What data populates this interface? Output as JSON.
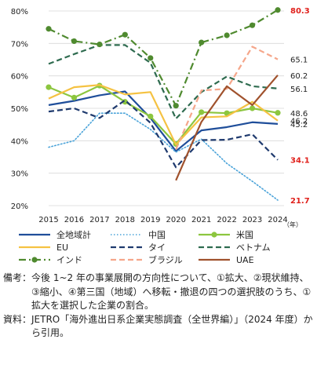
{
  "chart_data": {
    "type": "line",
    "x_unit": "（年）",
    "x": [
      "2015",
      "2016",
      "2017",
      "2018",
      "2019",
      "2020",
      "2021",
      "2022",
      "2023",
      "2024"
    ],
    "ylim": [
      20,
      80
    ],
    "yticks": [
      "20%",
      "30%",
      "40%",
      "50%",
      "60%",
      "70%",
      "80%"
    ],
    "series": [
      {
        "name": "全地域計",
        "color": "#1f4e9a",
        "style": "solid",
        "marker": false,
        "values": [
          51.0,
          52.3,
          54.0,
          55.2,
          47.0,
          36.8,
          43.2,
          44.2,
          45.7,
          45.2
        ],
        "end_label": "45.2",
        "end_label_color": "#222222"
      },
      {
        "name": "中国",
        "color": "#4aa3d9",
        "style": "dotted",
        "marker": false,
        "values": [
          38.0,
          40.0,
          48.5,
          48.5,
          43.5,
          36.5,
          40.5,
          33.0,
          27.5,
          21.7
        ],
        "end_label": "21.7",
        "end_label_color": "#e0201b"
      },
      {
        "name": "米国",
        "color": "#8cc63f",
        "style": "solid",
        "marker": true,
        "values": [
          56.5,
          53.3,
          57.0,
          52.0,
          47.5,
          39.0,
          48.8,
          48.5,
          50.0,
          48.6
        ],
        "end_label": "48.6",
        "end_label_color": "#222222"
      },
      {
        "name": "EU",
        "color": "#f5c242",
        "style": "solid",
        "marker": false,
        "values": [
          53.0,
          56.5,
          57.2,
          54.3,
          55.0,
          38.8,
          47.2,
          47.5,
          52.0,
          46.2
        ],
        "end_label": "46.2",
        "end_label_color": "#222222"
      },
      {
        "name": "タイ",
        "color": "#1f3a6e",
        "style": "dashed",
        "marker": false,
        "values": [
          49.0,
          50.0,
          47.0,
          52.5,
          45.5,
          31.8,
          40.2,
          40.3,
          42.0,
          34.1
        ],
        "end_label": "34.1",
        "end_label_color": "#e0201b"
      },
      {
        "name": "ベトナム",
        "color": "#2e6b4f",
        "style": "dashed",
        "marker": false,
        "values": [
          63.7,
          66.7,
          69.5,
          69.5,
          64.0,
          46.8,
          55.0,
          59.8,
          56.8,
          56.1
        ],
        "end_label": "56.1",
        "end_label_color": "#222222"
      },
      {
        "name": "インド",
        "color": "#4f8a2f",
        "style": "dashdot",
        "marker": true,
        "values": [
          74.5,
          70.7,
          69.7,
          72.7,
          65.5,
          50.8,
          70.3,
          72.5,
          75.6,
          80.3
        ],
        "end_label": "80.3",
        "end_label_color": "#e0201b"
      },
      {
        "name": "ブラジル",
        "color": "#f5a68a",
        "style": "dashed",
        "marker": false,
        "values": [
          null,
          null,
          null,
          null,
          null,
          37.3,
          55.5,
          56.0,
          69.0,
          65.1
        ],
        "end_label": "65.1",
        "end_label_color": "#222222"
      },
      {
        "name": "UAE",
        "color": "#a0522d",
        "style": "solid",
        "marker": false,
        "values": [
          null,
          null,
          null,
          null,
          null,
          27.8,
          45.8,
          56.8,
          51.0,
          60.2
        ],
        "end_label": "60.2",
        "end_label_color": "#222222"
      }
    ],
    "legend_order": [
      "全地域計",
      "中国",
      "米国",
      "EU",
      "タイ",
      "ベトナム",
      "インド",
      "ブラジル",
      "UAE"
    ],
    "legend_placement": "bottom",
    "grid": "horizontal"
  },
  "notes": [
    {
      "label": "備考：",
      "text": "今後 1~2 年の事業展開の方向性について、①拡大、②現状維持、③縮小、④第三国（地域）へ移転・撤退の四つの選択肢のうち、①拡大を選択した企業の割合。"
    },
    {
      "label": "資料：",
      "text": "JETRO「海外進出日系企業実態調査（全世界編）」（2024 年度）から引用。"
    }
  ]
}
